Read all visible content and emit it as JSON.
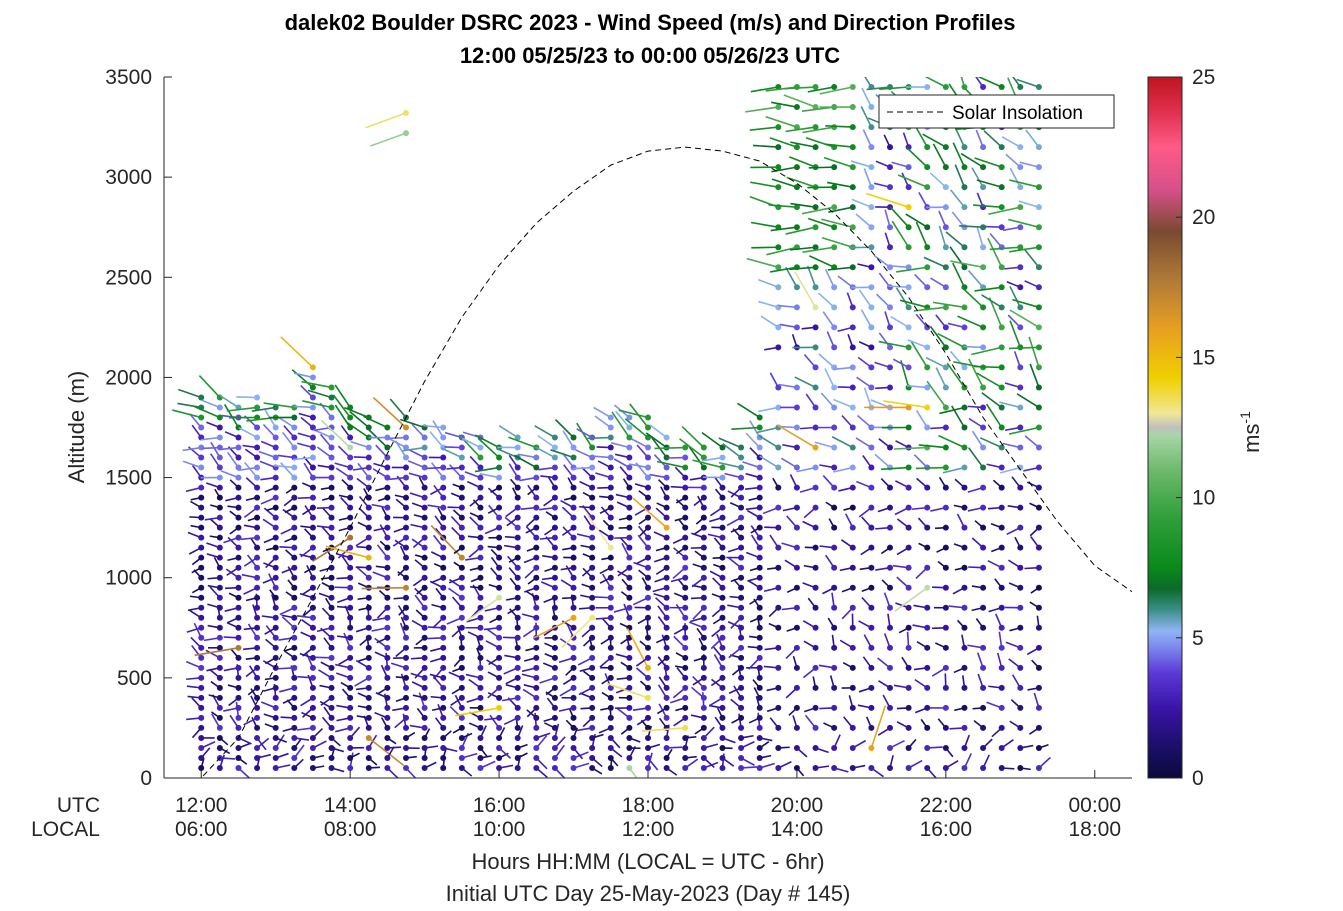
{
  "chart_data": {
    "type": "scatter",
    "title": "dalek02 Boulder DSRC 2023 - Wind Speed (m/s) and Direction Profiles",
    "subtitle": "12:00 05/25/23 to 00:00 05/26/23  UTC",
    "ylabel": "Altitude (m)",
    "xlabel": "Hours HH:MM  (LOCAL = UTC - 6hr)",
    "xlabel2": "Initial UTC Day 25-May-2023 (Day # 145)",
    "xlim": [
      11.5,
      24.5
    ],
    "ylim": [
      0,
      3500
    ],
    "y_ticks": [
      "0",
      "500",
      "1000",
      "1500",
      "2000",
      "2500",
      "3000",
      "3500"
    ],
    "x_tick_hours": [
      12,
      14,
      16,
      18,
      20,
      22,
      24
    ],
    "x_row_labels": [
      "UTC",
      "LOCAL"
    ],
    "x_ticks_utc": [
      "12:00",
      "14:00",
      "16:00",
      "18:00",
      "20:00",
      "22:00",
      "00:00"
    ],
    "x_ticks_local": [
      "06:00",
      "08:00",
      "10:00",
      "12:00",
      "14:00",
      "16:00",
      "18:00"
    ],
    "colorbar": {
      "label": "ms",
      "label_exponent": "-1",
      "range": [
        0,
        25
      ],
      "ticks": [
        "0",
        "5",
        "10",
        "15",
        "20",
        "25"
      ]
    },
    "legend": {
      "entry": "Solar Insolation",
      "placement": "top-right"
    },
    "solar_insolation": {
      "x": [
        11.5,
        12,
        12.5,
        13,
        13.5,
        14,
        14.5,
        15,
        15.5,
        16,
        16.5,
        17,
        17.5,
        18,
        18.5,
        19,
        19.5,
        20,
        20.5,
        21,
        21.5,
        22,
        22.5,
        23,
        23.5,
        24,
        24.5
      ],
      "y": [
        0,
        0,
        200,
        560,
        900,
        1250,
        1620,
        1980,
        2300,
        2560,
        2770,
        2930,
        3060,
        3130,
        3150,
        3130,
        3080,
        2970,
        2820,
        2630,
        2400,
        2120,
        1800,
        1540,
        1280,
        1060,
        930
      ]
    },
    "wind_field": {
      "time_start": 12.0,
      "time_end": 23.25,
      "time_step": 0.25,
      "altitude_step": 50,
      "profile_top": [
        [
          12.0,
          1900
        ],
        [
          12.25,
          1900
        ],
        [
          12.5,
          1850
        ],
        [
          12.75,
          1900
        ],
        [
          13.0,
          1850
        ],
        [
          13.25,
          1850
        ],
        [
          13.5,
          2050
        ],
        [
          13.75,
          1950
        ],
        [
          14.0,
          1850
        ],
        [
          14.25,
          1800
        ],
        [
          14.5,
          1750
        ],
        [
          14.75,
          1800
        ],
        [
          15.0,
          1750
        ],
        [
          15.25,
          1750
        ],
        [
          15.5,
          1700
        ],
        [
          15.75,
          1700
        ],
        [
          16.0,
          1650
        ],
        [
          16.25,
          1700
        ],
        [
          16.5,
          1650
        ],
        [
          16.75,
          1700
        ],
        [
          17.0,
          1700
        ],
        [
          17.25,
          1700
        ],
        [
          17.5,
          1800
        ],
        [
          17.75,
          1800
        ],
        [
          18.0,
          1800
        ],
        [
          18.25,
          1700
        ],
        [
          18.5,
          1650
        ],
        [
          18.75,
          1650
        ],
        [
          19.0,
          1650
        ],
        [
          19.25,
          1650
        ],
        [
          19.5,
          1800
        ],
        [
          19.75,
          3450
        ],
        [
          20.0,
          3450
        ],
        [
          20.25,
          3450
        ],
        [
          20.5,
          3450
        ],
        [
          20.75,
          3450
        ],
        [
          21.0,
          3450
        ],
        [
          21.25,
          3450
        ],
        [
          21.5,
          3450
        ],
        [
          21.75,
          3450
        ],
        [
          22.0,
          3450
        ],
        [
          22.25,
          3450
        ],
        [
          22.5,
          3450
        ],
        [
          22.75,
          3450
        ],
        [
          23.0,
          3450
        ],
        [
          23.25,
          3450
        ]
      ],
      "gap": {
        "time_from": 19.7,
        "time_to": 20.2,
        "altitude_from": 1950,
        "altitude_to": 2150
      },
      "isolated_points": [
        {
          "time": 14.75,
          "altitude": 3320,
          "speed": 13.5,
          "direction": 250
        },
        {
          "time": 14.75,
          "altitude": 3220,
          "speed": 11.5,
          "direction": 250
        }
      ]
    }
  }
}
